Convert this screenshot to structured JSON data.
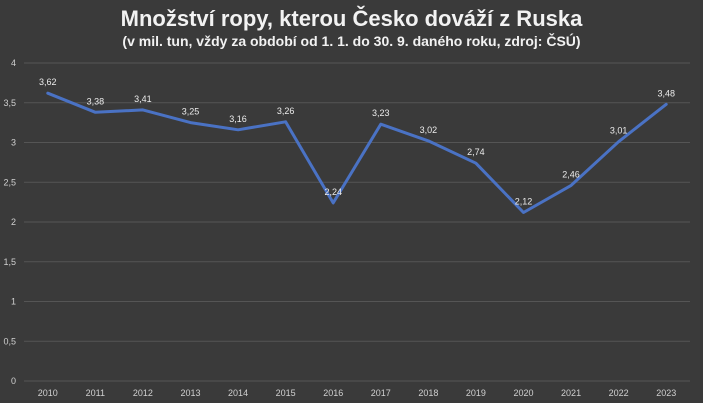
{
  "chart_data": {
    "type": "line",
    "title": "Množství ropy, kterou Česko dováží z Ruska",
    "subtitle": "(v mil. tun, vždy za období od 1. 1. do 30. 9. daného roku, zdroj: ČSÚ)",
    "categories": [
      "2010",
      "2011",
      "2012",
      "2013",
      "2014",
      "2015",
      "2016",
      "2017",
      "2018",
      "2019",
      "2020",
      "2021",
      "2022",
      "2023"
    ],
    "series": [
      {
        "values": [
          3.62,
          3.38,
          3.41,
          3.25,
          3.16,
          3.26,
          2.24,
          3.23,
          3.02,
          2.74,
          2.12,
          2.46,
          3.01,
          3.48
        ]
      }
    ],
    "data_labels": [
      "3,62",
      "3,38",
      "3,41",
      "3,25",
      "3,16",
      "3,26",
      "2,24",
      "3,23",
      "3,02",
      "2,74",
      "2,12",
      "2,46",
      "3,01",
      "3,48"
    ],
    "y_tick_labels": [
      "0",
      "0,5",
      "1",
      "1,5",
      "2",
      "2,5",
      "3",
      "3,5",
      "4"
    ],
    "ylim": [
      0,
      4
    ],
    "grid": true,
    "legend": "none",
    "colors": {
      "background": "#3a3a3a",
      "line": "#4a72c4",
      "grid": "#555555",
      "text": "#f2f2f2"
    }
  }
}
